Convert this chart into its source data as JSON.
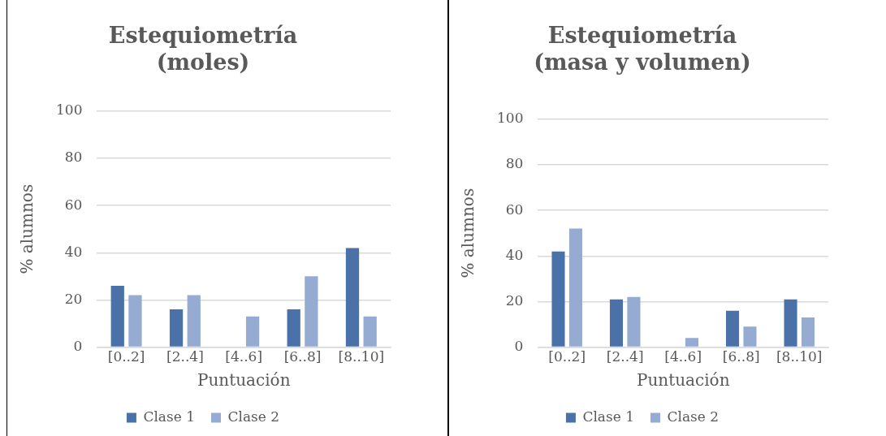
{
  "chart_data": [
    {
      "type": "bar",
      "title": "Estequiometría\n(moles)",
      "xlabel": "Puntuación",
      "ylabel": "% alumnos",
      "categories": [
        "[0..2]",
        "[2..4]",
        "[4..6]",
        "[6..8]",
        "[8..10]"
      ],
      "series": [
        {
          "name": "Clase 1",
          "color": "#4a72a8",
          "values": [
            26,
            16,
            0,
            16,
            42
          ]
        },
        {
          "name": "Clase 2",
          "color": "#95abd1",
          "values": [
            22,
            22,
            13,
            30,
            13
          ]
        }
      ],
      "ylim": [
        0,
        100
      ],
      "yticks": [
        0,
        20,
        40,
        60,
        80,
        100
      ],
      "grid": "y",
      "legend": "bottom"
    },
    {
      "type": "bar",
      "title": "Estequiometría\n(masa y volumen)",
      "xlabel": "Puntuación",
      "ylabel": "% alumnos",
      "categories": [
        "[0..2]",
        "[2..4]",
        "[4..6]",
        "[6..8]",
        "[8..10]"
      ],
      "series": [
        {
          "name": "Clase 1",
          "color": "#4a72a8",
          "values": [
            42,
            21,
            0,
            16,
            21
          ]
        },
        {
          "name": "Clase 2",
          "color": "#95abd1",
          "values": [
            52,
            22,
            4,
            9,
            13
          ]
        }
      ],
      "ylim": [
        0,
        100
      ],
      "yticks": [
        0,
        20,
        40,
        60,
        80,
        100
      ],
      "grid": "y",
      "legend": "bottom"
    }
  ]
}
